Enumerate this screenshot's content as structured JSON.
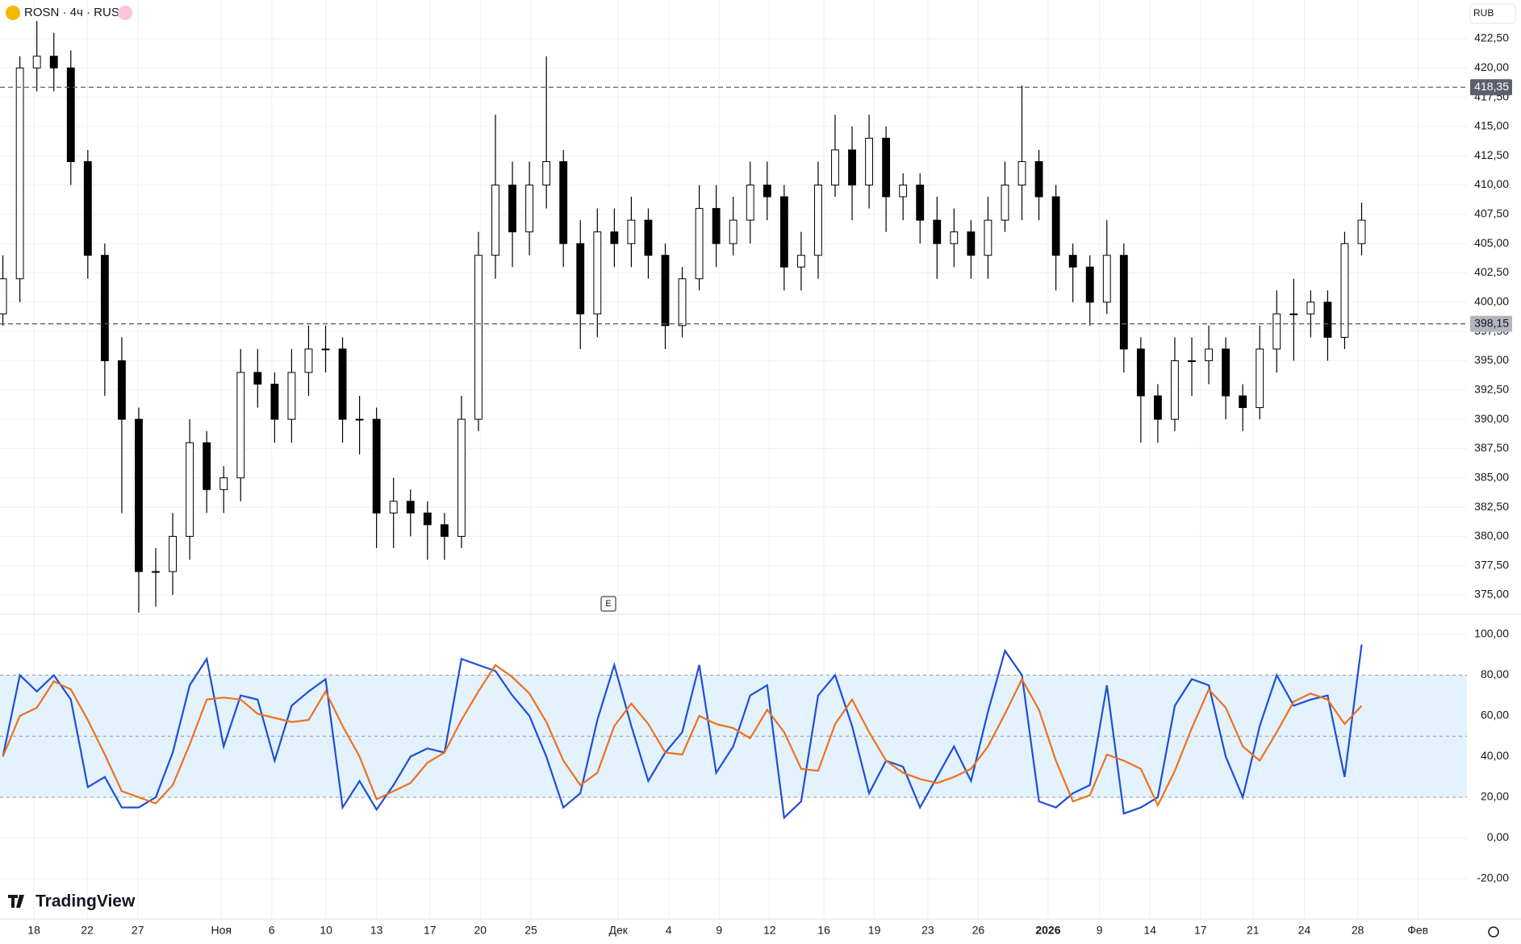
{
  "chart_data": {
    "type": "candlestick",
    "title": "ROSN · 4ч · RUS",
    "currency": "RUB",
    "watermark": "TradingView",
    "event_marker": "E",
    "up_color": "#ffffff",
    "down_color": "#000000",
    "wick_color": "#000000",
    "open": [
      399,
      402,
      420,
      421,
      420,
      412,
      404,
      395,
      390,
      377,
      377,
      380,
      388,
      384,
      385,
      394,
      393,
      390,
      394,
      396,
      396,
      390,
      390,
      382,
      383,
      382,
      381,
      380,
      390,
      404,
      410,
      406,
      410,
      412,
      405,
      399,
      406,
      405,
      407,
      404,
      398,
      402,
      408,
      405,
      407,
      410,
      409,
      403,
      404,
      410,
      413,
      410,
      414,
      409,
      410,
      407,
      405,
      406,
      404,
      407,
      410,
      412,
      409,
      404,
      403,
      400,
      404,
      396,
      392,
      390,
      395,
      395,
      396,
      392,
      391,
      396,
      399,
      399,
      400,
      397,
      405
    ],
    "high": [
      404,
      421,
      424,
      423,
      421.5,
      413,
      405,
      397,
      391,
      379,
      382,
      390,
      389,
      386,
      396,
      396,
      394,
      396,
      398,
      398,
      397,
      392,
      391,
      385,
      384,
      383,
      382,
      392,
      406,
      416,
      412,
      412,
      421,
      413,
      407,
      408,
      408,
      409,
      408,
      405,
      403,
      410,
      410,
      409,
      412,
      412,
      410,
      406,
      412,
      416,
      415,
      416,
      415,
      411,
      411,
      409,
      408,
      407,
      409,
      412,
      418.5,
      413,
      410,
      405,
      404,
      407,
      405,
      397,
      393,
      397,
      397,
      398,
      397,
      393,
      398,
      401,
      402,
      401,
      401,
      406,
      408.5
    ],
    "low": [
      398,
      400,
      418,
      418,
      410,
      402,
      392,
      382,
      373.5,
      374,
      375,
      378,
      382,
      382,
      383,
      391,
      388,
      388,
      392,
      394,
      388,
      387,
      379,
      379,
      380,
      378,
      378,
      379,
      389,
      402,
      403,
      404,
      408,
      403,
      396,
      397,
      403,
      403,
      402,
      396,
      397,
      401,
      403,
      404,
      405,
      407,
      401,
      401,
      402,
      409,
      407,
      408,
      406,
      407,
      405,
      402,
      403,
      402,
      402,
      406,
      407,
      407,
      401,
      400,
      398,
      399,
      394,
      388,
      388,
      389,
      392,
      393,
      390,
      389,
      390,
      394,
      395,
      397,
      395,
      396,
      404
    ],
    "close": [
      402,
      420,
      421,
      420,
      412,
      404,
      395,
      390,
      377,
      377,
      380,
      388,
      384,
      385,
      394,
      393,
      390,
      394,
      396,
      396,
      390,
      390,
      382,
      383,
      382,
      381,
      380,
      390,
      404,
      410,
      406,
      410,
      412,
      405,
      399,
      406,
      405,
      407,
      404,
      398,
      402,
      408,
      405,
      407,
      410,
      409,
      403,
      404,
      410,
      413,
      410,
      414,
      409,
      410,
      407,
      405,
      406,
      404,
      407,
      410,
      412,
      409,
      404,
      403,
      400,
      404,
      396,
      392,
      390,
      395,
      395,
      396,
      392,
      391,
      396,
      399,
      399,
      400,
      397,
      405,
      407
    ],
    "xlim": [
      -0.17,
      86.2
    ],
    "xticks": [
      {
        "value": 1.83,
        "label": "18"
      },
      {
        "value": 4.97,
        "label": "22"
      },
      {
        "value": 7.94,
        "label": "27"
      },
      {
        "value": 12.86,
        "label": "Ноя"
      },
      {
        "value": 15.83,
        "label": "6"
      },
      {
        "value": 19.03,
        "label": "10"
      },
      {
        "value": 22,
        "label": "13"
      },
      {
        "value": 25.14,
        "label": "17"
      },
      {
        "value": 28.11,
        "label": "20"
      },
      {
        "value": 31.09,
        "label": "25"
      },
      {
        "value": 36.23,
        "label": "Дек"
      },
      {
        "value": 39.2,
        "label": "4"
      },
      {
        "value": 42.17,
        "label": "9"
      },
      {
        "value": 45.14,
        "label": "12"
      },
      {
        "value": 48.34,
        "label": "16"
      },
      {
        "value": 51.31,
        "label": "19"
      },
      {
        "value": 54.46,
        "label": "23"
      },
      {
        "value": 57.43,
        "label": "26"
      },
      {
        "value": 61.54,
        "label": "2026"
      },
      {
        "value": 64.57,
        "label": "9"
      },
      {
        "value": 67.54,
        "label": "14"
      },
      {
        "value": 70.51,
        "label": "17"
      },
      {
        "value": 73.6,
        "label": "21"
      },
      {
        "value": 76.63,
        "label": "24"
      },
      {
        "value": 79.77,
        "label": "28"
      },
      {
        "value": 83.31,
        "label": "Фев"
      }
    ],
    "ylim": [
      373.35,
      425.8
    ],
    "yticks": [
      {
        "value": 375,
        "label": "375,00"
      },
      {
        "value": 377.5,
        "label": "377,50"
      },
      {
        "value": 380,
        "label": "380,00"
      },
      {
        "value": 382.5,
        "label": "382,50"
      },
      {
        "value": 385,
        "label": "385,00"
      },
      {
        "value": 387.5,
        "label": "387,50"
      },
      {
        "value": 390,
        "label": "390,00"
      },
      {
        "value": 392.5,
        "label": "392,50"
      },
      {
        "value": 395,
        "label": "395,00"
      },
      {
        "value": 397.5,
        "label": "397,50"
      },
      {
        "value": 400,
        "label": "400,00"
      },
      {
        "value": 402.5,
        "label": "402,50"
      },
      {
        "value": 405,
        "label": "405,00"
      },
      {
        "value": 407.5,
        "label": "407,50"
      },
      {
        "value": 410,
        "label": "410,00"
      },
      {
        "value": 412.5,
        "label": "412,50"
      },
      {
        "value": 415,
        "label": "415,00"
      },
      {
        "value": 417.5,
        "label": "417,50"
      },
      {
        "value": 420,
        "label": "420,00"
      },
      {
        "value": 422.5,
        "label": "422,50"
      }
    ],
    "grid": true,
    "price_lines": [
      {
        "value": 418.35,
        "label": "418,35",
        "color": "#5d606b",
        "text_color": "#ffffff"
      },
      {
        "value": 398.15,
        "label": "398,15",
        "color": "#b2b5be",
        "text_color": "#131722"
      }
    ],
    "indicator": {
      "type": "line",
      "ylim": [
        -39.8,
        109.9
      ],
      "yticks": [
        {
          "value": 100,
          "label": "100,00"
        },
        {
          "value": 80,
          "label": "80,00"
        },
        {
          "value": 60,
          "label": "60,00"
        },
        {
          "value": 40,
          "label": "40,00"
        },
        {
          "value": 20,
          "label": "20,00"
        },
        {
          "value": 0,
          "label": "0,00"
        },
        {
          "value": -20,
          "label": "-20,00"
        }
      ],
      "bands": [
        80,
        50,
        20
      ],
      "band_fill": "#e3f2fd",
      "series": [
        {
          "color": "#1e4fd8",
          "values": [
            40,
            80,
            72,
            80,
            68,
            25,
            30,
            15,
            15,
            20,
            42,
            75,
            88,
            45,
            70,
            68,
            38,
            65,
            72,
            78,
            15,
            28,
            14,
            26,
            40,
            44,
            42,
            88,
            85,
            82,
            70,
            60,
            40,
            15,
            22,
            58,
            85,
            55,
            28,
            42,
            52,
            85,
            32,
            45,
            70,
            75,
            10,
            18,
            70,
            80,
            55,
            22,
            38,
            35,
            15,
            30,
            45,
            28,
            62,
            92,
            80,
            18,
            15,
            22,
            26,
            75,
            12,
            15,
            20,
            65,
            78,
            75,
            40,
            20,
            55,
            80,
            65,
            68,
            70,
            30,
            95
          ]
        },
        {
          "color": "#f0701f",
          "values": [
            40,
            60,
            64,
            77,
            73,
            58,
            41,
            23,
            20,
            17,
            26,
            46,
            68,
            69,
            68,
            61,
            59,
            57,
            58,
            72,
            55,
            40,
            19,
            23,
            27,
            37,
            42,
            58,
            72,
            85,
            79,
            71,
            57,
            38,
            26,
            32,
            55,
            66,
            56,
            42,
            41,
            60,
            56,
            54,
            49,
            63,
            52,
            34,
            33,
            56,
            68,
            52,
            38,
            32,
            29,
            27,
            30,
            34,
            45,
            61,
            78,
            63,
            38,
            18,
            21,
            41,
            38,
            34,
            16,
            33,
            54,
            73,
            64,
            45,
            38,
            52,
            67,
            71,
            68,
            56,
            65
          ]
        }
      ]
    }
  }
}
